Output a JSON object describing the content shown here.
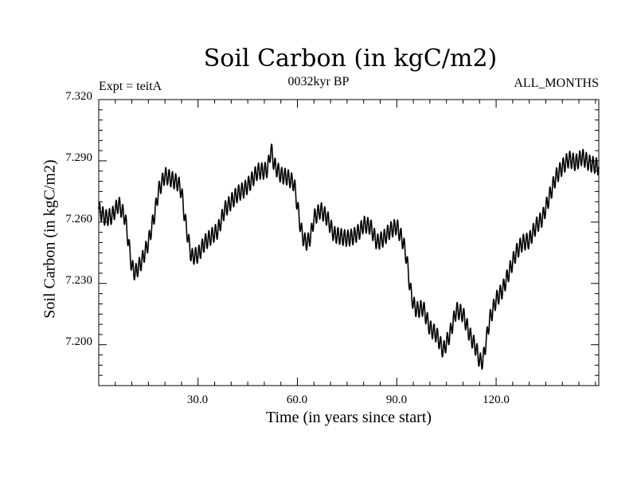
{
  "chart_data": {
    "type": "line",
    "title": "Soil Carbon (in kgC/m2)",
    "subtitle": "0032kyr BP",
    "annotation_left": "Expt = teitA",
    "annotation_right": "ALL_MONTHS",
    "xlabel": "Time (in years since start)",
    "ylabel": "Soil Carbon (in kgC/m2)",
    "xlim": [
      0,
      151
    ],
    "ylim": [
      7.18,
      7.32
    ],
    "x_ticks": [
      "30.0",
      "60.0",
      "90.0",
      "120.0"
    ],
    "x_tick_values": [
      30,
      60,
      90,
      120
    ],
    "y_ticks": [
      "7.200",
      "7.230",
      "7.260",
      "7.290",
      "7.320"
    ],
    "y_tick_values": [
      7.2,
      7.23,
      7.26,
      7.29,
      7.32
    ],
    "series_note": "monthly values; seasonal oscillation amplitude ~0.004 around the yearly trend below",
    "seasonal_amplitude": 0.004,
    "trend": {
      "x": [
        0,
        2,
        4,
        6,
        8,
        9,
        10,
        11,
        13,
        15,
        17,
        18,
        20,
        22,
        24,
        25,
        26,
        27,
        28,
        30,
        32,
        34,
        36,
        38,
        40,
        42,
        44,
        46,
        48,
        50,
        51,
        52,
        53,
        55,
        57,
        59,
        60,
        61,
        62,
        63,
        64,
        65,
        67,
        69,
        71,
        73,
        75,
        77,
        79,
        80,
        82,
        84,
        86,
        88,
        90,
        92,
        93,
        94,
        95,
        96,
        98,
        100,
        102,
        104,
        106,
        108,
        110,
        112,
        114,
        115,
        116,
        118,
        120,
        122,
        124,
        126,
        128,
        130,
        132,
        134,
        136,
        138,
        140,
        142,
        144,
        146,
        148,
        151
      ],
      "y": [
        7.266,
        7.262,
        7.263,
        7.269,
        7.262,
        7.25,
        7.238,
        7.235,
        7.241,
        7.25,
        7.265,
        7.275,
        7.283,
        7.281,
        7.279,
        7.275,
        7.262,
        7.252,
        7.243,
        7.244,
        7.25,
        7.253,
        7.256,
        7.266,
        7.27,
        7.274,
        7.276,
        7.28,
        7.285,
        7.285,
        7.286,
        7.296,
        7.288,
        7.283,
        7.282,
        7.279,
        7.268,
        7.257,
        7.251,
        7.25,
        7.253,
        7.262,
        7.266,
        7.262,
        7.254,
        7.253,
        7.252,
        7.253,
        7.256,
        7.259,
        7.258,
        7.25,
        7.252,
        7.256,
        7.258,
        7.25,
        7.242,
        7.228,
        7.22,
        7.217,
        7.218,
        7.208,
        7.205,
        7.197,
        7.205,
        7.217,
        7.215,
        7.205,
        7.198,
        7.192,
        7.192,
        7.212,
        7.222,
        7.227,
        7.236,
        7.245,
        7.25,
        7.251,
        7.258,
        7.262,
        7.272,
        7.282,
        7.287,
        7.291,
        7.289,
        7.292,
        7.289,
        7.287
      ]
    }
  }
}
